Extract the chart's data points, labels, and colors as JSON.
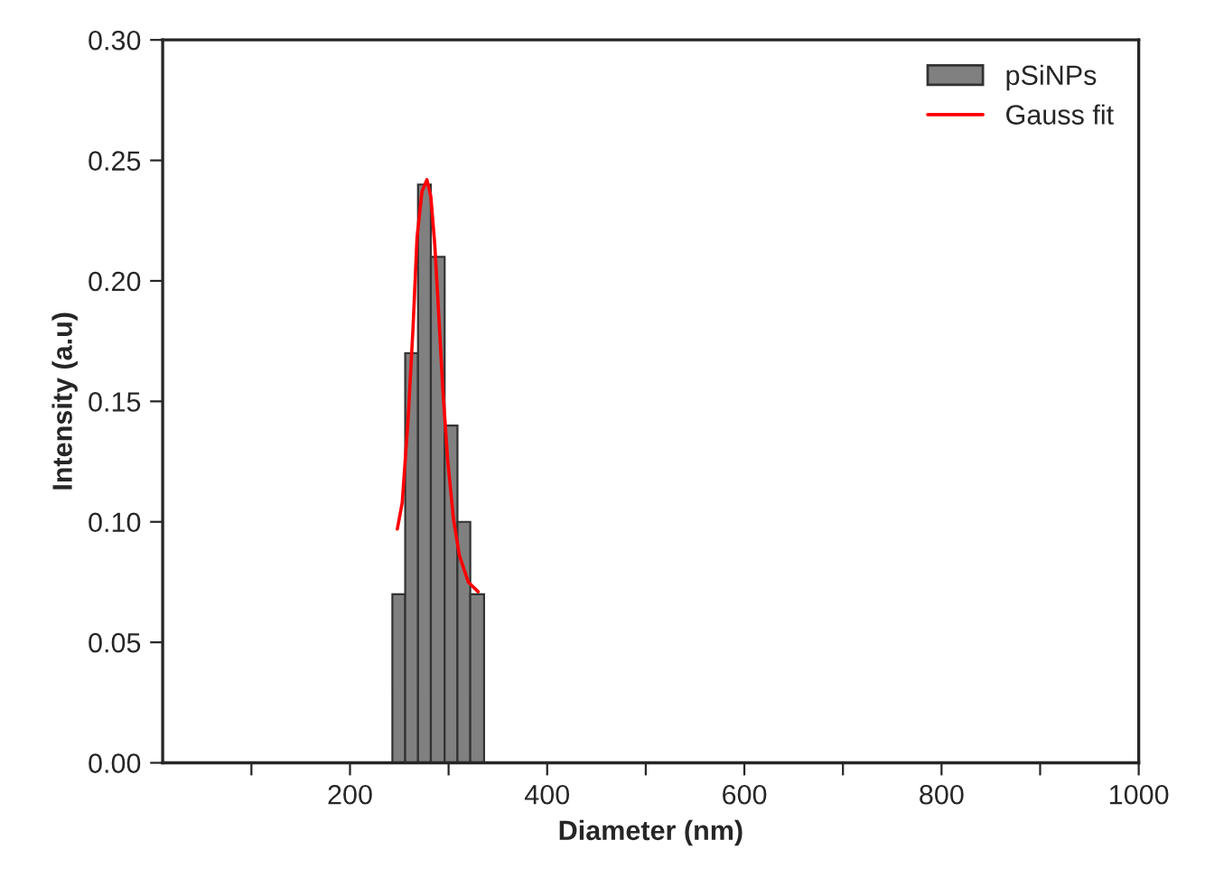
{
  "chart_data": {
    "type": "histogram",
    "xlabel": "Diameter (nm)",
    "ylabel": "Intensity (a.u)",
    "bins": [
      243,
      256,
      269,
      282,
      296,
      309,
      322,
      336
    ],
    "series": [
      {
        "name": "pSiNPs",
        "color": "#808080",
        "values": [
          0.07,
          0.17,
          0.24,
          0.21,
          0.14,
          0.1,
          0.07
        ]
      },
      {
        "name": "Gauss fit",
        "type": "line",
        "color": "#ff0000",
        "x": [
          248,
          253,
          259,
          264,
          268,
          273,
          278,
          282,
          286,
          290,
          294,
          299,
          305,
          311,
          320,
          330
        ],
        "values": [
          0.097,
          0.108,
          0.143,
          0.181,
          0.218,
          0.237,
          0.242,
          0.235,
          0.215,
          0.186,
          0.156,
          0.126,
          0.101,
          0.086,
          0.075,
          0.071
        ]
      }
    ],
    "xlim": [
      10,
      1000
    ],
    "xticks": [
      {
        "value": 100,
        "label": null
      },
      200,
      {
        "value": 300,
        "label": null
      },
      400,
      {
        "value": 500,
        "label": null
      },
      600,
      {
        "value": 700,
        "label": null
      },
      800,
      {
        "value": 900,
        "label": null
      },
      1000
    ],
    "ylim": [
      0,
      0.3
    ],
    "yticks": [
      {
        "value": 0,
        "label": "0.00"
      },
      {
        "value": 0.05,
        "label": "0.05"
      },
      {
        "value": 0.1,
        "label": "0.10"
      },
      {
        "value": 0.15,
        "label": "0.15"
      },
      {
        "value": 0.2,
        "label": "0.20"
      },
      {
        "value": 0.25,
        "label": "0.25"
      },
      {
        "value": 0.3,
        "label": "0.30"
      }
    ],
    "grid": false,
    "legend": "top right"
  }
}
